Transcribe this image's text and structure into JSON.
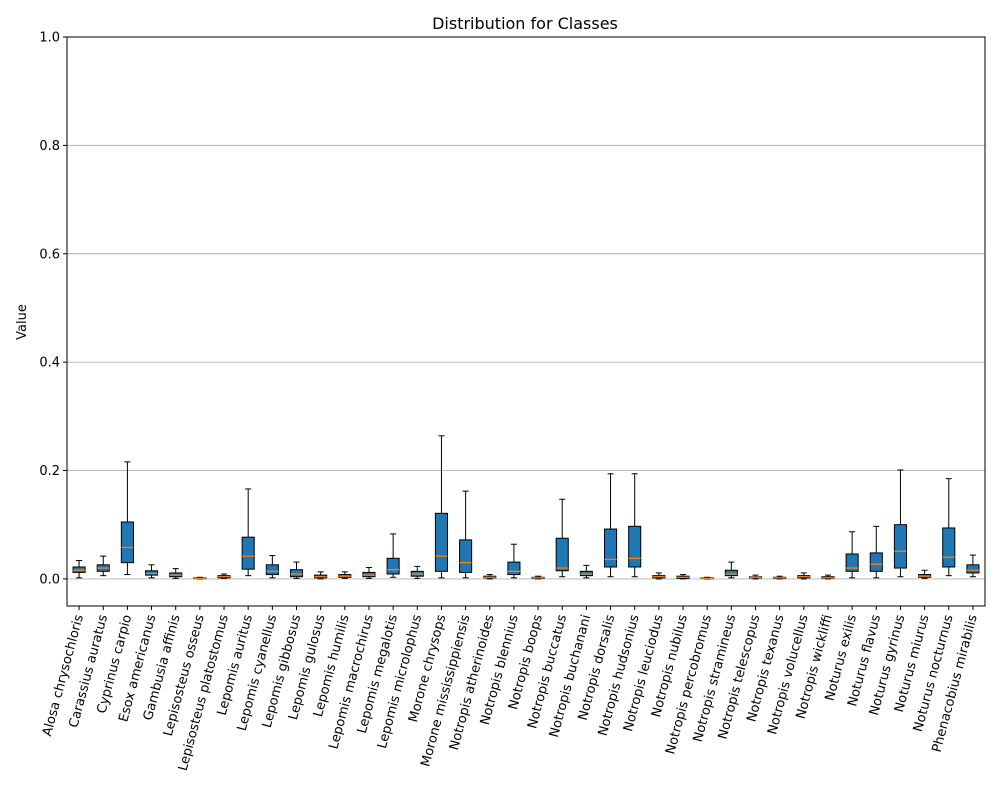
{
  "chart_data": {
    "type": "box",
    "title": "Distribution for Classes",
    "ylabel": "Value",
    "xlabel": "",
    "ylim": [
      -0.05,
      1.0
    ],
    "yticks": [
      "0.0",
      "0.2",
      "0.4",
      "0.6",
      "0.8",
      "1.0"
    ],
    "grid": "y",
    "box_color": "#1f77b4",
    "median_color": "#ff7f0e",
    "categories": [
      "Alosa chrysochloris",
      "Carassius auratus",
      "Cyprinus carpio",
      "Esox americanus",
      "Gambusia affinis",
      "Lepisosteus osseus",
      "Lepisosteus platostomus",
      "Lepomis auritus",
      "Lepomis cyanellus",
      "Lepomis gibbosus",
      "Lepomis gulosus",
      "Lepomis humilis",
      "Lepomis macrochirus",
      "Lepomis megalotis",
      "Lepomis microlophus",
      "Morone chrysops",
      "Morone mississippiensis",
      "Notropis atherinoides",
      "Notropis blennius",
      "Notropis boops",
      "Notropis buccatus",
      "Notropis buchanani",
      "Notropis dorsalis",
      "Notropis hudsonius",
      "Notropis leuciodus",
      "Notropis nubilus",
      "Notropis percobromus",
      "Notropis stramineus",
      "Notropis telescopus",
      "Notropis texanus",
      "Notropis volucellus",
      "Notropis wickliffi",
      "Noturus exilis",
      "Noturus flavus",
      "Noturus gyrinus",
      "Noturus miurus",
      "Noturus nocturnus",
      "Phenacobius mirabilis"
    ],
    "boxes": [
      {
        "whislo": 0.002,
        "q1": 0.012,
        "med": 0.016,
        "q3": 0.022,
        "whishi": 0.034
      },
      {
        "whislo": 0.006,
        "q1": 0.014,
        "med": 0.02,
        "q3": 0.026,
        "whishi": 0.042
      },
      {
        "whislo": 0.008,
        "q1": 0.03,
        "med": 0.058,
        "q3": 0.105,
        "whishi": 0.216
      },
      {
        "whislo": 0.002,
        "q1": 0.007,
        "med": 0.01,
        "q3": 0.015,
        "whishi": 0.026
      },
      {
        "whislo": 0.001,
        "q1": 0.004,
        "med": 0.007,
        "q3": 0.011,
        "whishi": 0.019
      },
      {
        "whislo": 0.0,
        "q1": 0.001,
        "med": 0.001,
        "q3": 0.002,
        "whishi": 0.003
      },
      {
        "whislo": 0.001,
        "q1": 0.002,
        "med": 0.004,
        "q3": 0.006,
        "whishi": 0.009
      },
      {
        "whislo": 0.006,
        "q1": 0.018,
        "med": 0.042,
        "q3": 0.077,
        "whishi": 0.166
      },
      {
        "whislo": 0.002,
        "q1": 0.008,
        "med": 0.014,
        "q3": 0.026,
        "whishi": 0.043
      },
      {
        "whislo": 0.001,
        "q1": 0.004,
        "med": 0.009,
        "q3": 0.017,
        "whishi": 0.031
      },
      {
        "whislo": 0.0,
        "q1": 0.002,
        "med": 0.004,
        "q3": 0.007,
        "whishi": 0.013
      },
      {
        "whislo": 0.001,
        "q1": 0.003,
        "med": 0.005,
        "q3": 0.008,
        "whishi": 0.013
      },
      {
        "whislo": 0.001,
        "q1": 0.004,
        "med": 0.007,
        "q3": 0.012,
        "whishi": 0.021
      },
      {
        "whislo": 0.003,
        "q1": 0.009,
        "med": 0.017,
        "q3": 0.038,
        "whishi": 0.083
      },
      {
        "whislo": 0.001,
        "q1": 0.005,
        "med": 0.009,
        "q3": 0.014,
        "whishi": 0.023
      },
      {
        "whislo": 0.002,
        "q1": 0.014,
        "med": 0.042,
        "q3": 0.121,
        "whishi": 0.264
      },
      {
        "whislo": 0.002,
        "q1": 0.012,
        "med": 0.03,
        "q3": 0.072,
        "whishi": 0.162
      },
      {
        "whislo": 0.0,
        "q1": 0.002,
        "med": 0.003,
        "q3": 0.005,
        "whishi": 0.008
      },
      {
        "whislo": 0.002,
        "q1": 0.008,
        "med": 0.014,
        "q3": 0.031,
        "whishi": 0.064
      },
      {
        "whislo": 0.0,
        "q1": 0.001,
        "med": 0.002,
        "q3": 0.003,
        "whishi": 0.005
      },
      {
        "whislo": 0.004,
        "q1": 0.015,
        "med": 0.02,
        "q3": 0.075,
        "whishi": 0.147
      },
      {
        "whislo": 0.002,
        "q1": 0.006,
        "med": 0.009,
        "q3": 0.014,
        "whishi": 0.025
      },
      {
        "whislo": 0.004,
        "q1": 0.022,
        "med": 0.036,
        "q3": 0.092,
        "whishi": 0.194
      },
      {
        "whislo": 0.004,
        "q1": 0.022,
        "med": 0.038,
        "q3": 0.097,
        "whishi": 0.194
      },
      {
        "whislo": 0.0,
        "q1": 0.002,
        "med": 0.004,
        "q3": 0.006,
        "whishi": 0.011
      },
      {
        "whislo": 0.0,
        "q1": 0.001,
        "med": 0.003,
        "q3": 0.005,
        "whishi": 0.008
      },
      {
        "whislo": 0.0,
        "q1": 0.001,
        "med": 0.001,
        "q3": 0.002,
        "whishi": 0.003
      },
      {
        "whislo": 0.002,
        "q1": 0.006,
        "med": 0.009,
        "q3": 0.016,
        "whishi": 0.031
      },
      {
        "whislo": 0.0,
        "q1": 0.002,
        "med": 0.003,
        "q3": 0.004,
        "whishi": 0.007
      },
      {
        "whislo": 0.0,
        "q1": 0.001,
        "med": 0.002,
        "q3": 0.003,
        "whishi": 0.005
      },
      {
        "whislo": 0.0,
        "q1": 0.002,
        "med": 0.004,
        "q3": 0.006,
        "whishi": 0.011
      },
      {
        "whislo": 0.0,
        "q1": 0.001,
        "med": 0.002,
        "q3": 0.004,
        "whishi": 0.007
      },
      {
        "whislo": 0.002,
        "q1": 0.014,
        "med": 0.02,
        "q3": 0.046,
        "whishi": 0.087
      },
      {
        "whislo": 0.002,
        "q1": 0.014,
        "med": 0.027,
        "q3": 0.048,
        "whishi": 0.097
      },
      {
        "whislo": 0.004,
        "q1": 0.02,
        "med": 0.051,
        "q3": 0.1,
        "whishi": 0.201
      },
      {
        "whislo": 0.001,
        "q1": 0.003,
        "med": 0.005,
        "q3": 0.008,
        "whishi": 0.016
      },
      {
        "whislo": 0.006,
        "q1": 0.022,
        "med": 0.04,
        "q3": 0.094,
        "whishi": 0.185
      },
      {
        "whislo": 0.004,
        "q1": 0.011,
        "med": 0.016,
        "q3": 0.026,
        "whishi": 0.044
      }
    ]
  }
}
